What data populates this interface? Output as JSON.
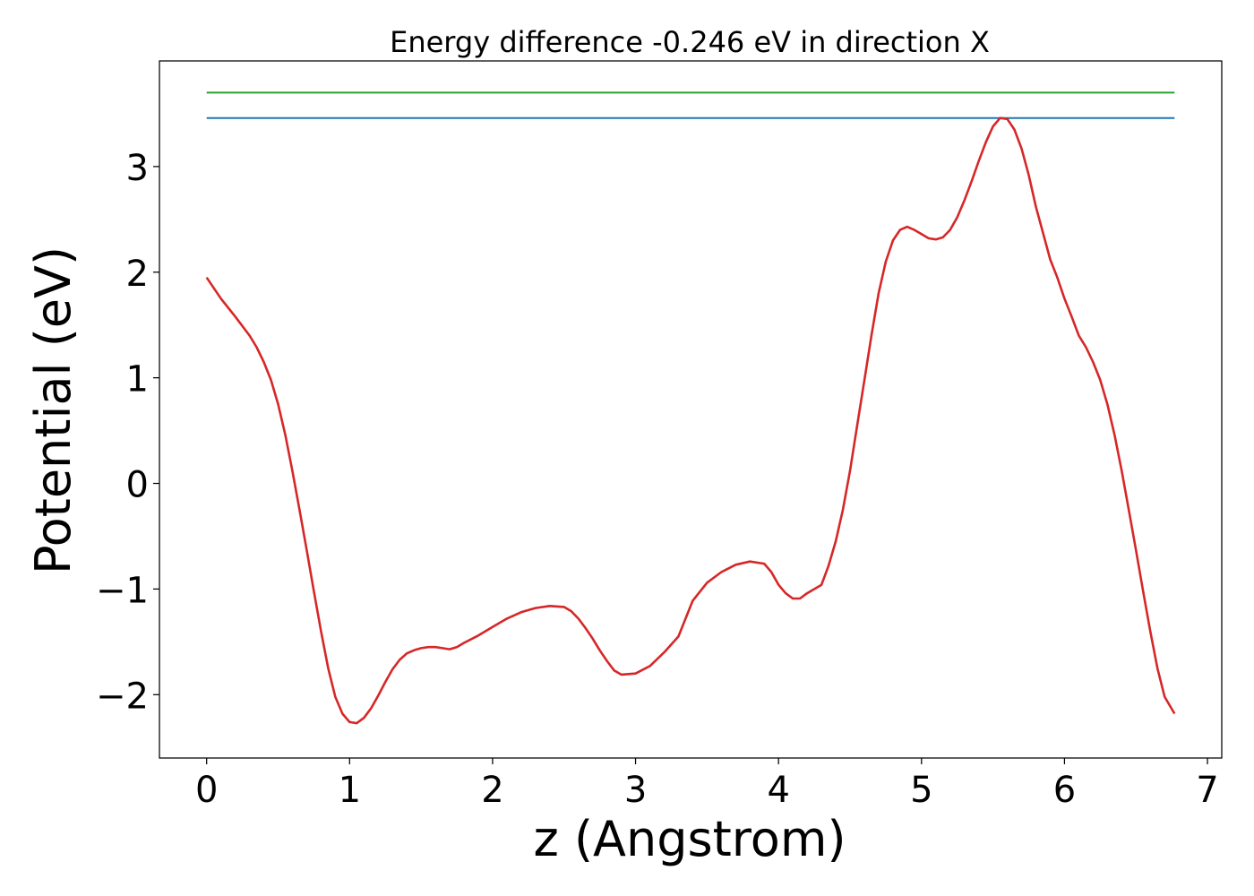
{
  "chart_data": {
    "type": "line",
    "title": "Energy difference -0.246 eV in direction X",
    "xlabel": "z (Angstrom)",
    "ylabel": "Potential (eV)",
    "xlim": [
      -0.33,
      7.1
    ],
    "ylim": [
      -2.6,
      4.0
    ],
    "grid": false,
    "x_ticks": [
      0,
      1,
      2,
      3,
      4,
      5,
      6,
      7
    ],
    "x_tick_labels": [
      "0",
      "1",
      "2",
      "3",
      "4",
      "5",
      "6",
      "7"
    ],
    "y_ticks": [
      -2,
      -1,
      0,
      1,
      2,
      3
    ],
    "y_tick_labels": [
      "−2",
      "−1",
      "0",
      "1",
      "2",
      "3"
    ],
    "series": [
      {
        "color": "#2ca02c",
        "x": [
          0,
          6.77
        ],
        "y": [
          3.7,
          3.7
        ]
      },
      {
        "color": "#1f77b4",
        "x": [
          0,
          6.77
        ],
        "y": [
          3.46,
          3.46
        ]
      },
      {
        "color": "#d62728",
        "x": [
          0,
          0.1,
          0.2,
          0.3,
          0.35,
          0.4,
          0.45,
          0.5,
          0.55,
          0.6,
          0.65,
          0.7,
          0.75,
          0.8,
          0.85,
          0.9,
          0.95,
          1.0,
          1.05,
          1.1,
          1.15,
          1.2,
          1.25,
          1.3,
          1.35,
          1.4,
          1.45,
          1.5,
          1.55,
          1.6,
          1.65,
          1.7,
          1.75,
          1.8,
          1.9,
          2.0,
          2.1,
          2.2,
          2.3,
          2.4,
          2.5,
          2.55,
          2.6,
          2.65,
          2.7,
          2.75,
          2.8,
          2.85,
          2.9,
          3.0,
          3.1,
          3.2,
          3.3,
          3.35,
          3.4,
          3.5,
          3.6,
          3.7,
          3.8,
          3.9,
          3.95,
          4.0,
          4.05,
          4.1,
          4.15,
          4.2,
          4.3,
          4.35,
          4.4,
          4.45,
          4.5,
          4.55,
          4.6,
          4.65,
          4.7,
          4.75,
          4.8,
          4.85,
          4.9,
          4.95,
          5.0,
          5.05,
          5.1,
          5.15,
          5.2,
          5.25,
          5.3,
          5.35,
          5.4,
          5.45,
          5.5,
          5.55,
          5.6,
          5.65,
          5.7,
          5.75,
          5.8,
          5.85,
          5.9,
          5.95,
          6.0,
          6.05,
          6.1,
          6.15,
          6.2,
          6.25,
          6.3,
          6.35,
          6.4,
          6.45,
          6.5,
          6.55,
          6.6,
          6.65,
          6.7,
          6.77
        ],
        "y": [
          1.95,
          1.75,
          1.58,
          1.4,
          1.29,
          1.15,
          0.98,
          0.75,
          0.46,
          0.12,
          -0.25,
          -0.63,
          -1.02,
          -1.4,
          -1.75,
          -2.02,
          -2.18,
          -2.26,
          -2.27,
          -2.22,
          -2.13,
          -2.01,
          -1.88,
          -1.76,
          -1.67,
          -1.61,
          -1.58,
          -1.56,
          -1.55,
          -1.55,
          -1.56,
          -1.57,
          -1.55,
          -1.51,
          -1.44,
          -1.36,
          -1.28,
          -1.22,
          -1.18,
          -1.16,
          -1.17,
          -1.21,
          -1.28,
          -1.37,
          -1.47,
          -1.58,
          -1.68,
          -1.77,
          -1.81,
          -1.8,
          -1.73,
          -1.6,
          -1.45,
          -1.28,
          -1.11,
          -0.94,
          -0.84,
          -0.77,
          -0.74,
          -0.76,
          -0.84,
          -0.96,
          -1.04,
          -1.09,
          -1.09,
          -1.04,
          -0.96,
          -0.78,
          -0.55,
          -0.25,
          0.12,
          0.55,
          0.97,
          1.4,
          1.8,
          2.1,
          2.3,
          2.4,
          2.43,
          2.4,
          2.36,
          2.32,
          2.31,
          2.33,
          2.4,
          2.52,
          2.68,
          2.86,
          3.05,
          3.23,
          3.38,
          3.46,
          3.45,
          3.35,
          3.17,
          2.92,
          2.62,
          2.37,
          2.12,
          1.95,
          1.75,
          1.58,
          1.4,
          1.29,
          1.15,
          0.98,
          0.75,
          0.46,
          0.12,
          -0.25,
          -0.63,
          -1.02,
          -1.4,
          -1.75,
          -2.02,
          -2.18
        ]
      }
    ]
  }
}
